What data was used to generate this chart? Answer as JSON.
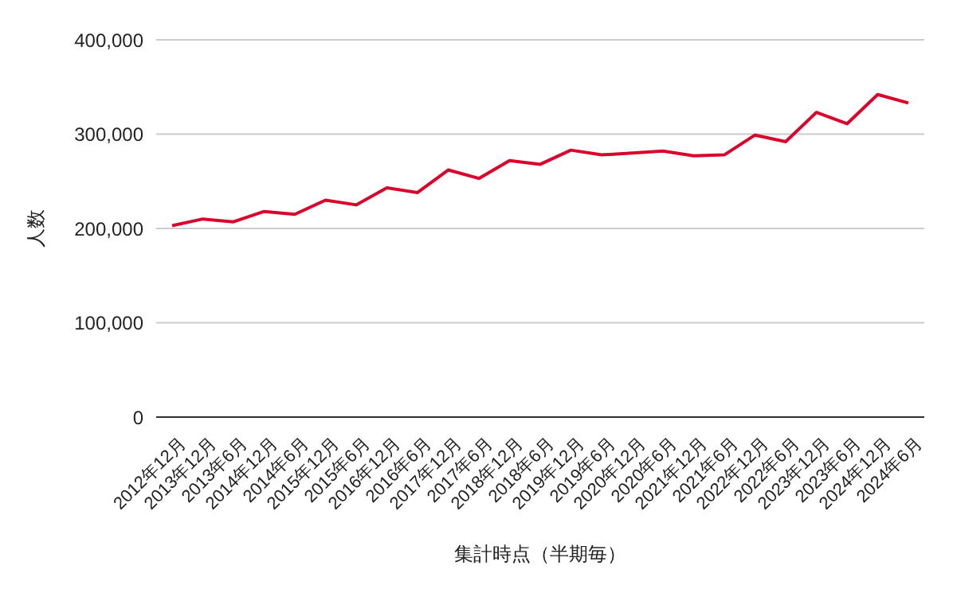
{
  "chart_data": {
    "type": "line",
    "xlabel": "集計時点（半期毎）",
    "ylabel": "人数",
    "categories": [
      "2012年12月",
      "2013年12月",
      "2013年6月",
      "2014年12月",
      "2014年6月",
      "2015年12月",
      "2015年6月",
      "2016年12月",
      "2016年6月",
      "2017年12月",
      "2017年6月",
      "2018年12月",
      "2018年6月",
      "2019年12月",
      "2019年6月",
      "2020年12月",
      "2020年6月",
      "2021年12月",
      "2021年6月",
      "2022年12月",
      "2022年6月",
      "2023年12月",
      "2023年6月",
      "2024年12月",
      "2024年6月"
    ],
    "series": [
      {
        "color": "#d9042b",
        "values": [
          203000,
          210000,
          207000,
          218000,
          215000,
          230000,
          225000,
          243000,
          238000,
          262000,
          253000,
          272000,
          268000,
          283000,
          278000,
          280000,
          282000,
          277000,
          278000,
          299000,
          292000,
          323000,
          311000,
          342000,
          333000
        ]
      }
    ],
    "ylim": [
      0,
      400000
    ],
    "yticks": [
      {
        "value": 0,
        "label": "0"
      },
      {
        "value": 100000,
        "label": "100,000"
      },
      {
        "value": 200000,
        "label": "200,000"
      },
      {
        "value": 300000,
        "label": "300,000"
      },
      {
        "value": 400000,
        "label": "400,000"
      }
    ],
    "grid": "y",
    "marker": "none",
    "line_style": "solid"
  }
}
